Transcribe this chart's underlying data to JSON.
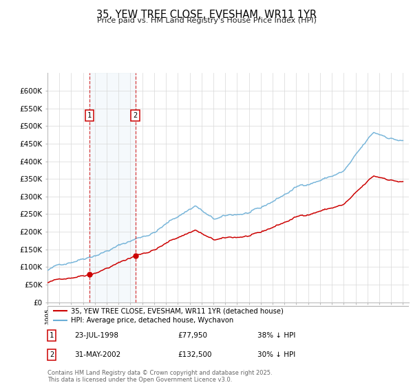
{
  "title": "35, YEW TREE CLOSE, EVESHAM, WR11 1YR",
  "subtitle": "Price paid vs. HM Land Registry's House Price Index (HPI)",
  "legend_line1": "35, YEW TREE CLOSE, EVESHAM, WR11 1YR (detached house)",
  "legend_line2": "HPI: Average price, detached house, Wychavon",
  "transaction1_date": "23-JUL-1998",
  "transaction1_price": "£77,950",
  "transaction1_hpi": "38% ↓ HPI",
  "transaction2_date": "31-MAY-2002",
  "transaction2_price": "£132,500",
  "transaction2_hpi": "30% ↓ HPI",
  "footer": "Contains HM Land Registry data © Crown copyright and database right 2025.\nThis data is licensed under the Open Government Licence v3.0.",
  "hpi_color": "#6aaed6",
  "price_color": "#cc0000",
  "t1_year": 1998.55,
  "t2_year": 2002.42,
  "t1_price": 77950,
  "t2_price": 132500,
  "xmin": 1995,
  "xmax": 2025.5,
  "ymin": 0,
  "ymax": 650000,
  "yticks": [
    0,
    50000,
    100000,
    150000,
    200000,
    250000,
    300000,
    350000,
    400000,
    450000,
    500000,
    550000,
    600000
  ],
  "yticklabels": [
    "£0",
    "£50K",
    "£100K",
    "£150K",
    "£200K",
    "£250K",
    "£300K",
    "£350K",
    "£400K",
    "£450K",
    "£500K",
    "£550K",
    "£600K"
  ],
  "hpi_seed": 42,
  "price_seed": 99,
  "n_points": 365
}
